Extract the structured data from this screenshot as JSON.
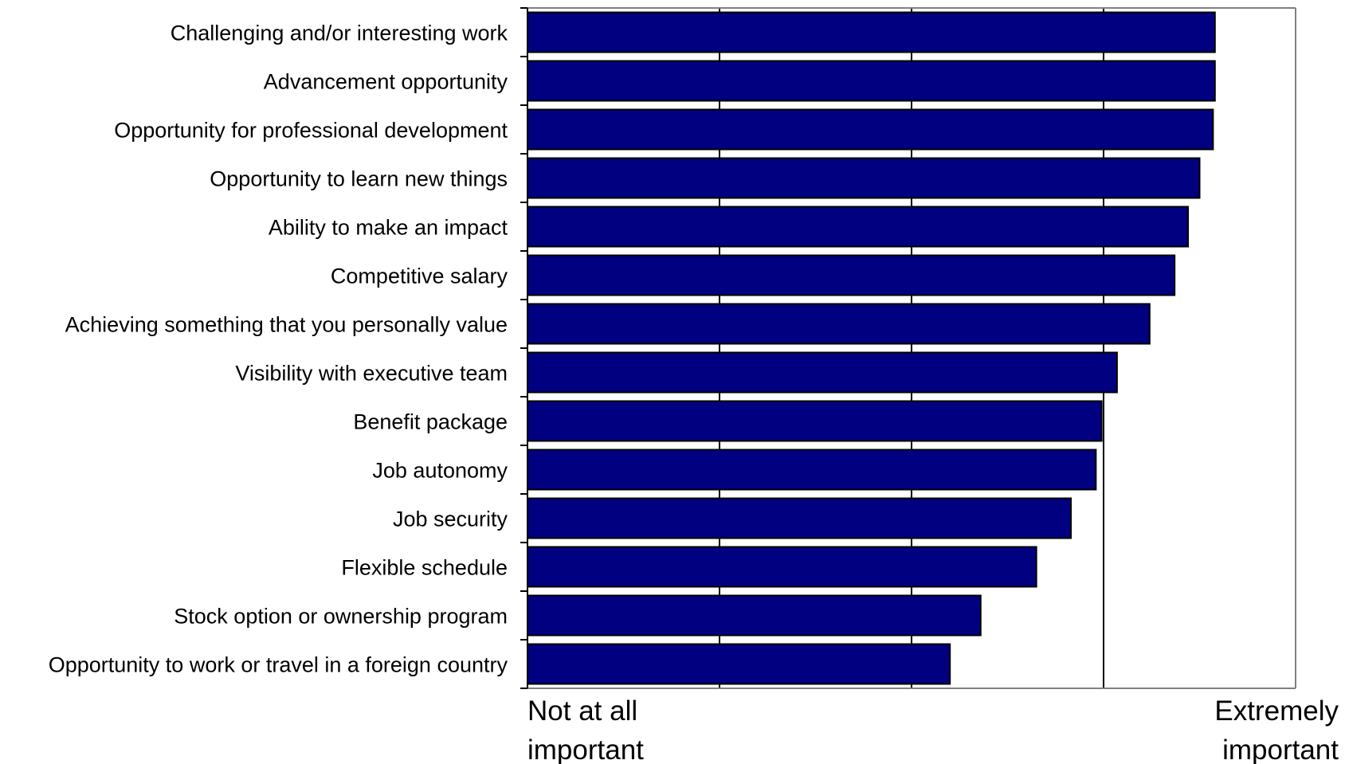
{
  "chart_data": {
    "type": "bar",
    "orientation": "horizontal",
    "title": "",
    "xlabel": "",
    "ylabel": "",
    "xlim": [
      1,
      5
    ],
    "grid": true,
    "legend": "none",
    "bar_color": "#000080",
    "bar_edge_color": "#000000",
    "axis_labels": {
      "low": [
        "Not at all",
        "important"
      ],
      "high": [
        "Extremely",
        "important"
      ]
    },
    "categories": [
      "Challenging and/or interesting work",
      "Advancement opportunity",
      "Opportunity for professional development",
      "Opportunity to learn new things",
      "Ability to make an impact",
      "Competitive salary",
      "Achieving something that you personally value",
      "Visibility with executive team",
      "Benefit package",
      "Job autonomy",
      "Job security",
      "Flexible schedule",
      "Stock option or ownership program",
      "Opportunity to work or travel in a foreign country"
    ],
    "values": [
      4.58,
      4.58,
      4.57,
      4.5,
      4.44,
      4.37,
      4.24,
      4.07,
      3.99,
      3.96,
      3.83,
      3.65,
      3.36,
      3.2
    ]
  }
}
